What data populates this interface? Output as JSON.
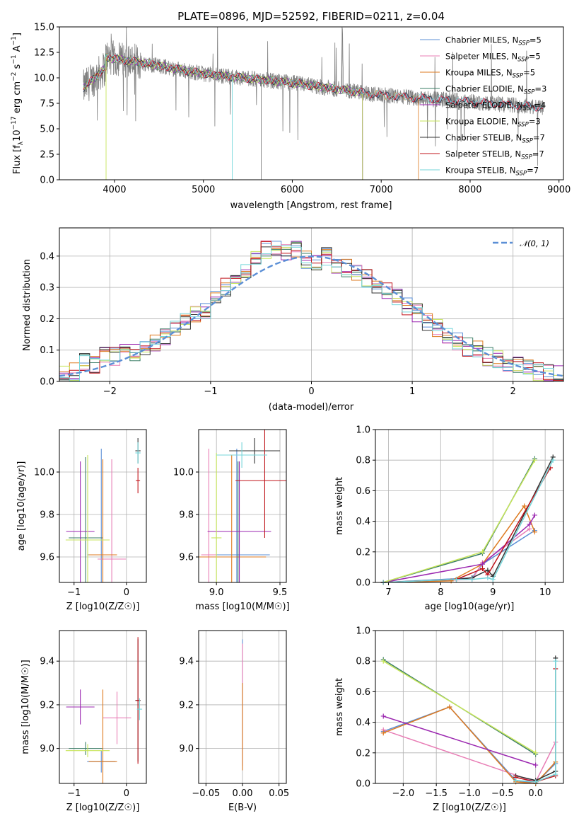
{
  "chart_data": [
    {
      "type": "line",
      "id": "spectrum",
      "title": "PLATE=0896, MJD=52592, FIBERID=0211, z=0.04",
      "xlabel": "wavelength [Angstrom, rest frame]",
      "ylabel": "Flux [f_λ 10^-17 erg cm^-2 s^-1 A^-1]",
      "xlim": [
        3380,
        9050
      ],
      "ylim": [
        0,
        15
      ],
      "xticks": [
        "4000",
        "5000",
        "6000",
        "7000",
        "8000",
        "9000"
      ],
      "yticks": [
        "0.0",
        "2.5",
        "5.0",
        "7.5",
        "10.0",
        "12.5",
        "15.0"
      ],
      "grid": false,
      "legend_position": "top-right",
      "data_range_x": [
        3650,
        8830
      ],
      "observed_color": "#808080",
      "series": [
        {
          "name": "Chabrier MILES, N_SSP=5",
          "color": "#5b8fd6",
          "end": 8820
        },
        {
          "name": "Salpeter MILES, N_SSP=5",
          "color": "#e87db5",
          "end": 8820
        },
        {
          "name": "Kroupa MILES, N_SSP=5",
          "color": "#de7a1f",
          "end": 7420
        },
        {
          "name": "Chabrier ELODIE, N_SSP=3",
          "color": "#3a7d66",
          "end": 6790
        },
        {
          "name": "Salpeter ELODIE, N_SSP=4",
          "color": "#9b27b0",
          "end": 6790
        },
        {
          "name": "Kroupa ELODIE, N_SSP=3",
          "color": "#c7e55a",
          "end": 6790
        },
        {
          "name": "Chabrier STELIB, N_SSP=7",
          "color": "#333333",
          "end": 8820
        },
        {
          "name": "Salpeter STELIB, N_SSP=7",
          "color": "#c0141b",
          "end": 8820
        },
        {
          "name": "Kroupa STELIB, N_SSP=7",
          "color": "#75d6da",
          "end": 8820
        }
      ],
      "legend_labels": {
        "chab_miles": [
          "Chabrier MILES, N",
          "SSP",
          "=5"
        ],
        "salp_miles": [
          "Salpeter MILES, N",
          "SSP",
          "=5"
        ],
        "krou_miles": [
          "Kroupa MILES, N",
          "SSP",
          "=5"
        ],
        "chab_elodie": [
          "Chabrier ELODIE, N",
          "SSP",
          "=3"
        ],
        "salp_elodie": [
          "Salpeter ELODIE, N",
          "SSP",
          "=4"
        ],
        "krou_elodie": [
          "Kroupa ELODIE, N",
          "SSP",
          "=3"
        ],
        "chab_stelib": [
          "Chabrier STELIB, N",
          "SSP",
          "=7"
        ],
        "salp_stelib": [
          "Salpeter STELIB, N",
          "SSP",
          "=7"
        ],
        "krou_stelib": [
          "Kroupa STELIB, N",
          "SSP",
          "=7"
        ]
      },
      "ylabel_parts": [
        "Flux [f",
        "λ",
        "10",
        "−17",
        " erg cm",
        "−2",
        " s",
        "−1",
        " A",
        "−1",
        "]"
      ]
    },
    {
      "type": "bar",
      "id": "residuals",
      "xlabel": "(data-model)/error",
      "ylabel": "Normed distribution",
      "xlim": [
        -2.5,
        2.5
      ],
      "ylim": [
        0,
        0.49
      ],
      "xticks": [
        "−2",
        "−1",
        "0",
        "1",
        "2"
      ],
      "yticks": [
        "0.0",
        "0.1",
        "0.2",
        "0.3",
        "0.4"
      ],
      "grid": true,
      "legend_position": "top-right",
      "legend": "𝒩(0, 1)",
      "normal_curve": {
        "mean": 0,
        "sigma": 1,
        "color": "#5b8fd6"
      },
      "bins": [
        -2.5,
        -2.4,
        -2.3,
        -2.2,
        -2.1,
        -2.0,
        -1.9,
        -1.8,
        -1.7,
        -1.6,
        -1.5,
        -1.4,
        -1.3,
        -1.2,
        -1.1,
        -1.0,
        -0.9,
        -0.8,
        -0.7,
        -0.6,
        -0.5,
        -0.4,
        -0.3,
        -0.2,
        -0.1,
        0.0,
        0.1,
        0.2,
        0.3,
        0.4,
        0.5,
        0.6,
        0.7,
        0.8,
        0.9,
        1.0,
        1.1,
        1.2,
        1.3,
        1.4,
        1.5,
        1.6,
        1.7,
        1.8,
        1.9,
        2.0,
        2.1,
        2.2,
        2.3,
        2.4
      ],
      "envelope": [
        0.02,
        0.03,
        0.06,
        0.05,
        0.08,
        0.08,
        0.1,
        0.09,
        0.11,
        0.12,
        0.14,
        0.17,
        0.19,
        0.21,
        0.23,
        0.27,
        0.3,
        0.33,
        0.36,
        0.4,
        0.42,
        0.43,
        0.41,
        0.42,
        0.39,
        0.38,
        0.4,
        0.37,
        0.36,
        0.35,
        0.33,
        0.31,
        0.29,
        0.27,
        0.24,
        0.22,
        0.19,
        0.17,
        0.15,
        0.13,
        0.11,
        0.1,
        0.08,
        0.07,
        0.06,
        0.05,
        0.04,
        0.03,
        0.03,
        0.02
      ]
    },
    {
      "type": "scatter",
      "id": "age_vs_Z",
      "xlabel": "Z [log10(Z/Z☉)]",
      "ylabel": "age [log10(age/yr)]",
      "xlim": [
        -1.28,
        0.38
      ],
      "ylim": [
        9.48,
        10.2
      ],
      "xticks": [
        "−1",
        "0"
      ],
      "yticks": [
        "9.6",
        "9.8",
        "10.0"
      ],
      "grid": true,
      "points": [
        {
          "x": -0.48,
          "y": 9.61,
          "xerr": 0.27,
          "yerr": 0.5
        },
        {
          "x": -0.28,
          "y": 9.59,
          "xerr": 0.27,
          "yerr": 0.47
        },
        {
          "x": -0.45,
          "y": 9.61,
          "xerr": 0.27,
          "yerr": 0.45
        },
        {
          "x": -0.78,
          "y": 9.69,
          "xerr": 0.32,
          "yerr": 0.38
        },
        {
          "x": -0.88,
          "y": 9.72,
          "xerr": 0.27,
          "yerr": 0.33
        },
        {
          "x": -0.74,
          "y": 9.68,
          "xerr": 0.42,
          "yerr": 0.4
        },
        {
          "x": 0.22,
          "y": 10.1,
          "xerr": 0.05,
          "yerr": 0.06
        },
        {
          "x": 0.22,
          "y": 9.96,
          "xerr": 0.04,
          "yerr": 0.06
        },
        {
          "x": 0.22,
          "y": 10.09,
          "xerr": 0.05,
          "yerr": 0.05
        }
      ]
    },
    {
      "type": "scatter",
      "id": "age_vs_mass",
      "xlabel": "mass [log10(M/M☉)]",
      "ylabel": "",
      "xlim": [
        8.86,
        9.55
      ],
      "ylim": [
        9.48,
        10.2
      ],
      "xticks": [
        "9.0",
        "9.5"
      ],
      "yticks": [
        "9.6",
        "9.8",
        "10.0"
      ],
      "grid": true,
      "points": [
        {
          "x": 9.16,
          "y": 9.61,
          "xerr": 0.26,
          "yerr": 0.5
        },
        {
          "x": 8.94,
          "y": 9.61,
          "xerr": 0.06,
          "yerr": 0.5
        },
        {
          "x": 9.12,
          "y": 9.6,
          "xerr": 0.27,
          "yerr": 0.48
        },
        {
          "x": 9.17,
          "y": 9.72,
          "xerr": 0.2,
          "yerr": 0.33
        },
        {
          "x": 9.18,
          "y": 9.72,
          "xerr": 0.25,
          "yerr": 0.33
        },
        {
          "x": 9.0,
          "y": 9.69,
          "xerr": 0.04,
          "yerr": 0.4
        },
        {
          "x": 9.3,
          "y": 10.1,
          "xerr": 0.2,
          "yerr": 0.06
        },
        {
          "x": 9.38,
          "y": 9.96,
          "xerr": 0.23,
          "yerr": 0.27
        },
        {
          "x": 9.2,
          "y": 10.08,
          "xerr": 0.2,
          "yerr": 0.06
        }
      ]
    },
    {
      "type": "line",
      "id": "mass_weight_vs_age",
      "xlabel": "age [log10(age/yr)]",
      "ylabel": "mass weight",
      "xlim": [
        6.75,
        10.35
      ],
      "ylim": [
        0,
        1
      ],
      "xticks": [
        "7",
        "8",
        "9",
        "10"
      ],
      "yticks": [
        "0.0",
        "0.2",
        "0.4",
        "0.6",
        "0.8",
        "1.0"
      ],
      "grid": true,
      "series": [
        {
          "name": "Chabrier MILES",
          "color": "#5b8fd6",
          "x": [
            6.9,
            8.6,
            8.8,
            9.8
          ],
          "y": [
            0.0,
            0.03,
            0.12,
            0.34
          ]
        },
        {
          "name": "Salpeter MILES",
          "color": "#e87db5",
          "x": [
            6.9,
            8.6,
            8.8,
            9.7
          ],
          "y": [
            0.0,
            0.02,
            0.13,
            0.35
          ]
        },
        {
          "name": "Kroupa MILES",
          "color": "#de7a1f",
          "x": [
            6.9,
            8.2,
            8.8,
            9.6,
            9.8
          ],
          "y": [
            0.0,
            0.01,
            0.12,
            0.5,
            0.33
          ]
        },
        {
          "name": "Chabrier ELODIE",
          "color": "#3a7d66",
          "x": [
            6.9,
            8.8,
            9.8
          ],
          "y": [
            0.0,
            0.19,
            0.81
          ]
        },
        {
          "name": "Salpeter ELODIE",
          "color": "#9b27b0",
          "x": [
            6.9,
            8.8,
            9.7,
            9.8
          ],
          "y": [
            0.0,
            0.12,
            0.38,
            0.44
          ]
        },
        {
          "name": "Kroupa ELODIE",
          "color": "#c7e55a",
          "x": [
            6.9,
            8.8,
            9.8
          ],
          "y": [
            0.0,
            0.2,
            0.8
          ]
        },
        {
          "name": "Chabrier STELIB",
          "color": "#333333",
          "x": [
            6.9,
            8.3,
            8.6,
            8.9,
            9.0,
            10.15
          ],
          "y": [
            0.0,
            0.02,
            0.03,
            0.08,
            0.04,
            0.82
          ]
        },
        {
          "name": "Salpeter STELIB",
          "color": "#c0141b",
          "x": [
            6.9,
            8.3,
            8.8,
            8.9,
            10.1
          ],
          "y": [
            0.0,
            0.02,
            0.09,
            0.05,
            0.75
          ]
        },
        {
          "name": "Kroupa STELIB",
          "color": "#75d6da",
          "x": [
            6.9,
            8.3,
            8.6,
            8.9,
            9.0,
            10.15
          ],
          "y": [
            0.0,
            0.02,
            0.02,
            0.03,
            0.02,
            0.8
          ]
        }
      ]
    },
    {
      "type": "scatter",
      "id": "mass_vs_Z",
      "xlabel": "Z [log10(Z/Z☉)]",
      "ylabel": "mass [log10(M/M☉)]",
      "xlim": [
        -1.28,
        0.38
      ],
      "ylim": [
        8.84,
        9.54
      ],
      "xticks": [
        "−1",
        "0"
      ],
      "yticks": [
        "9.0",
        "9.2",
        "9.4"
      ],
      "grid": true,
      "points": [
        {
          "x": -0.48,
          "y": 8.94,
          "xerr": 0.27,
          "yerr": 0.05
        },
        {
          "x": -0.18,
          "y": 9.14,
          "xerr": 0.27,
          "yerr": 0.12
        },
        {
          "x": -0.45,
          "y": 8.94,
          "xerr": 0.27,
          "yerr": 0.33
        },
        {
          "x": -0.78,
          "y": 9.0,
          "xerr": 0.32,
          "yerr": 0.03
        },
        {
          "x": -0.88,
          "y": 9.19,
          "xerr": 0.27,
          "yerr": 0.08
        },
        {
          "x": -0.74,
          "y": 8.99,
          "xerr": 0.42,
          "yerr": 0.03
        },
        {
          "x": 0.22,
          "y": 9.22,
          "xerr": 0.05,
          "yerr": 0.28
        },
        {
          "x": 0.22,
          "y": 9.22,
          "xerr": 0.04,
          "yerr": 0.29
        },
        {
          "x": 0.25,
          "y": 9.18,
          "xerr": 0.05,
          "yerr": 0.05
        }
      ]
    },
    {
      "type": "scatter",
      "id": "mass_vs_ebv",
      "xlabel": "E(B-V)",
      "ylabel": "",
      "xlim": [
        -0.06,
        0.06
      ],
      "ylim": [
        8.84,
        9.54
      ],
      "xticks": [
        "−0.05",
        "0.00",
        "0.05"
      ],
      "yticks": [
        "9.0",
        "9.2",
        "9.4"
      ],
      "grid": true,
      "points": [
        {
          "x": 0.0,
          "y": 9.2,
          "yerr": 0.3
        },
        {
          "x": 0.0,
          "y": 9.2,
          "yerr": 0.28
        },
        {
          "x": 0.0,
          "y": 9.1,
          "yerr": 0.2
        }
      ]
    },
    {
      "type": "line",
      "id": "mass_weight_vs_Z",
      "xlabel": "Z [log10(Z/Z☉)]",
      "ylabel": "mass weight",
      "xlim": [
        -2.42,
        0.42
      ],
      "ylim": [
        0,
        1
      ],
      "xticks": [
        "−2.0",
        "−1.5",
        "−1.0",
        "−0.5",
        "0.0"
      ],
      "yticks": [
        "0.0",
        "0.2",
        "0.4",
        "0.6",
        "0.8",
        "1.0"
      ],
      "grid": true,
      "series": [
        {
          "name": "Chabrier MILES",
          "color": "#5b8fd6",
          "x": [
            -2.3,
            -1.3,
            -0.3,
            0.0,
            0.3
          ],
          "y": [
            0.34,
            0.5,
            0.02,
            0.0,
            0.13
          ]
        },
        {
          "name": "Salpeter MILES",
          "color": "#e87db5",
          "x": [
            -2.3,
            0.0,
            0.3
          ],
          "y": [
            0.35,
            0.01,
            0.27
          ]
        },
        {
          "name": "Kroupa MILES",
          "color": "#de7a1f",
          "x": [
            -2.3,
            -1.3,
            -0.3,
            0.0,
            0.3
          ],
          "y": [
            0.33,
            0.5,
            0.01,
            0.0,
            0.14
          ]
        },
        {
          "name": "Chabrier ELODIE",
          "color": "#3a7d66",
          "x": [
            -2.3,
            0.0
          ],
          "y": [
            0.81,
            0.19
          ]
        },
        {
          "name": "Salpeter ELODIE",
          "color": "#9b27b0",
          "x": [
            -2.3,
            0.0
          ],
          "y": [
            0.44,
            0.12
          ]
        },
        {
          "name": "Kroupa ELODIE",
          "color": "#c7e55a",
          "x": [
            -2.3,
            0.0
          ],
          "y": [
            0.8,
            0.2
          ]
        },
        {
          "name": "Chabrier STELIB",
          "color": "#333333",
          "x": [
            -0.3,
            0.0,
            0.3,
            0.3
          ],
          "y": [
            0.05,
            0.02,
            0.08,
            0.82
          ]
        },
        {
          "name": "Salpeter STELIB",
          "color": "#c0141b",
          "x": [
            -0.3,
            0.0,
            0.3,
            0.3
          ],
          "y": [
            0.04,
            0.01,
            0.05,
            0.75
          ]
        },
        {
          "name": "Kroupa STELIB",
          "color": "#75d6da",
          "x": [
            -0.3,
            0.0,
            0.3,
            0.3
          ],
          "y": [
            0.02,
            0.01,
            0.06,
            0.8
          ]
        }
      ]
    }
  ]
}
